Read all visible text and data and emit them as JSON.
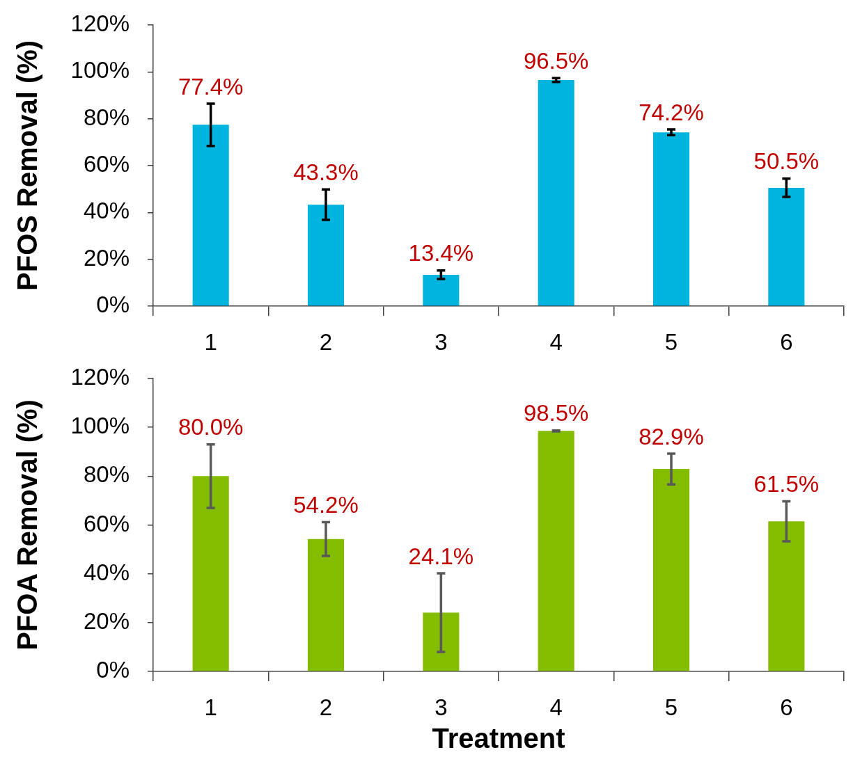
{
  "chart_data": [
    {
      "type": "bar",
      "ylabel": "PFOS Removal (%)",
      "categories": [
        "1",
        "2",
        "3",
        "4",
        "5",
        "6"
      ],
      "values": [
        77.4,
        43.3,
        13.4,
        96.5,
        74.2,
        50.5
      ],
      "color": "#00b4e0",
      "errors": [
        9,
        6.5,
        1.8,
        0.8,
        1.2,
        3.9
      ],
      "value_labels": [
        "77.4%",
        "43.3%",
        "13.4%",
        "96.5%",
        "74.2%",
        "50.5%"
      ],
      "ylim": [
        0,
        120
      ],
      "yticks": [
        {
          "value": 0,
          "label": "0%"
        },
        {
          "value": 20,
          "label": "20%"
        },
        {
          "value": 40,
          "label": "40%"
        },
        {
          "value": 60,
          "label": "60%"
        },
        {
          "value": 80,
          "label": "80%"
        },
        {
          "value": 100,
          "label": "100%"
        },
        {
          "value": 120,
          "label": "120%"
        }
      ],
      "grid": false,
      "legend": false
    },
    {
      "type": "bar",
      "xlabel": "Treatment",
      "ylabel": "PFOA Removal (%)",
      "categories": [
        "1",
        "2",
        "3",
        "4",
        "5",
        "6"
      ],
      "values": [
        80.0,
        54.2,
        24.1,
        98.5,
        82.9,
        61.5
      ],
      "color": "#84bc00",
      "errors": [
        13,
        6.9,
        16.1,
        0.2,
        6.3,
        8.2
      ],
      "value_labels": [
        "80.0%",
        "54.2%",
        "24.1%",
        "98.5%",
        "82.9%",
        "61.5%"
      ],
      "ylim": [
        0,
        120
      ],
      "yticks": [
        {
          "value": 0,
          "label": "0%"
        },
        {
          "value": 20,
          "label": "20%"
        },
        {
          "value": 40,
          "label": "40%"
        },
        {
          "value": 60,
          "label": "60%"
        },
        {
          "value": 80,
          "label": "80%"
        },
        {
          "value": 100,
          "label": "100%"
        },
        {
          "value": 120,
          "label": "120%"
        }
      ],
      "grid": false,
      "legend": false
    }
  ]
}
